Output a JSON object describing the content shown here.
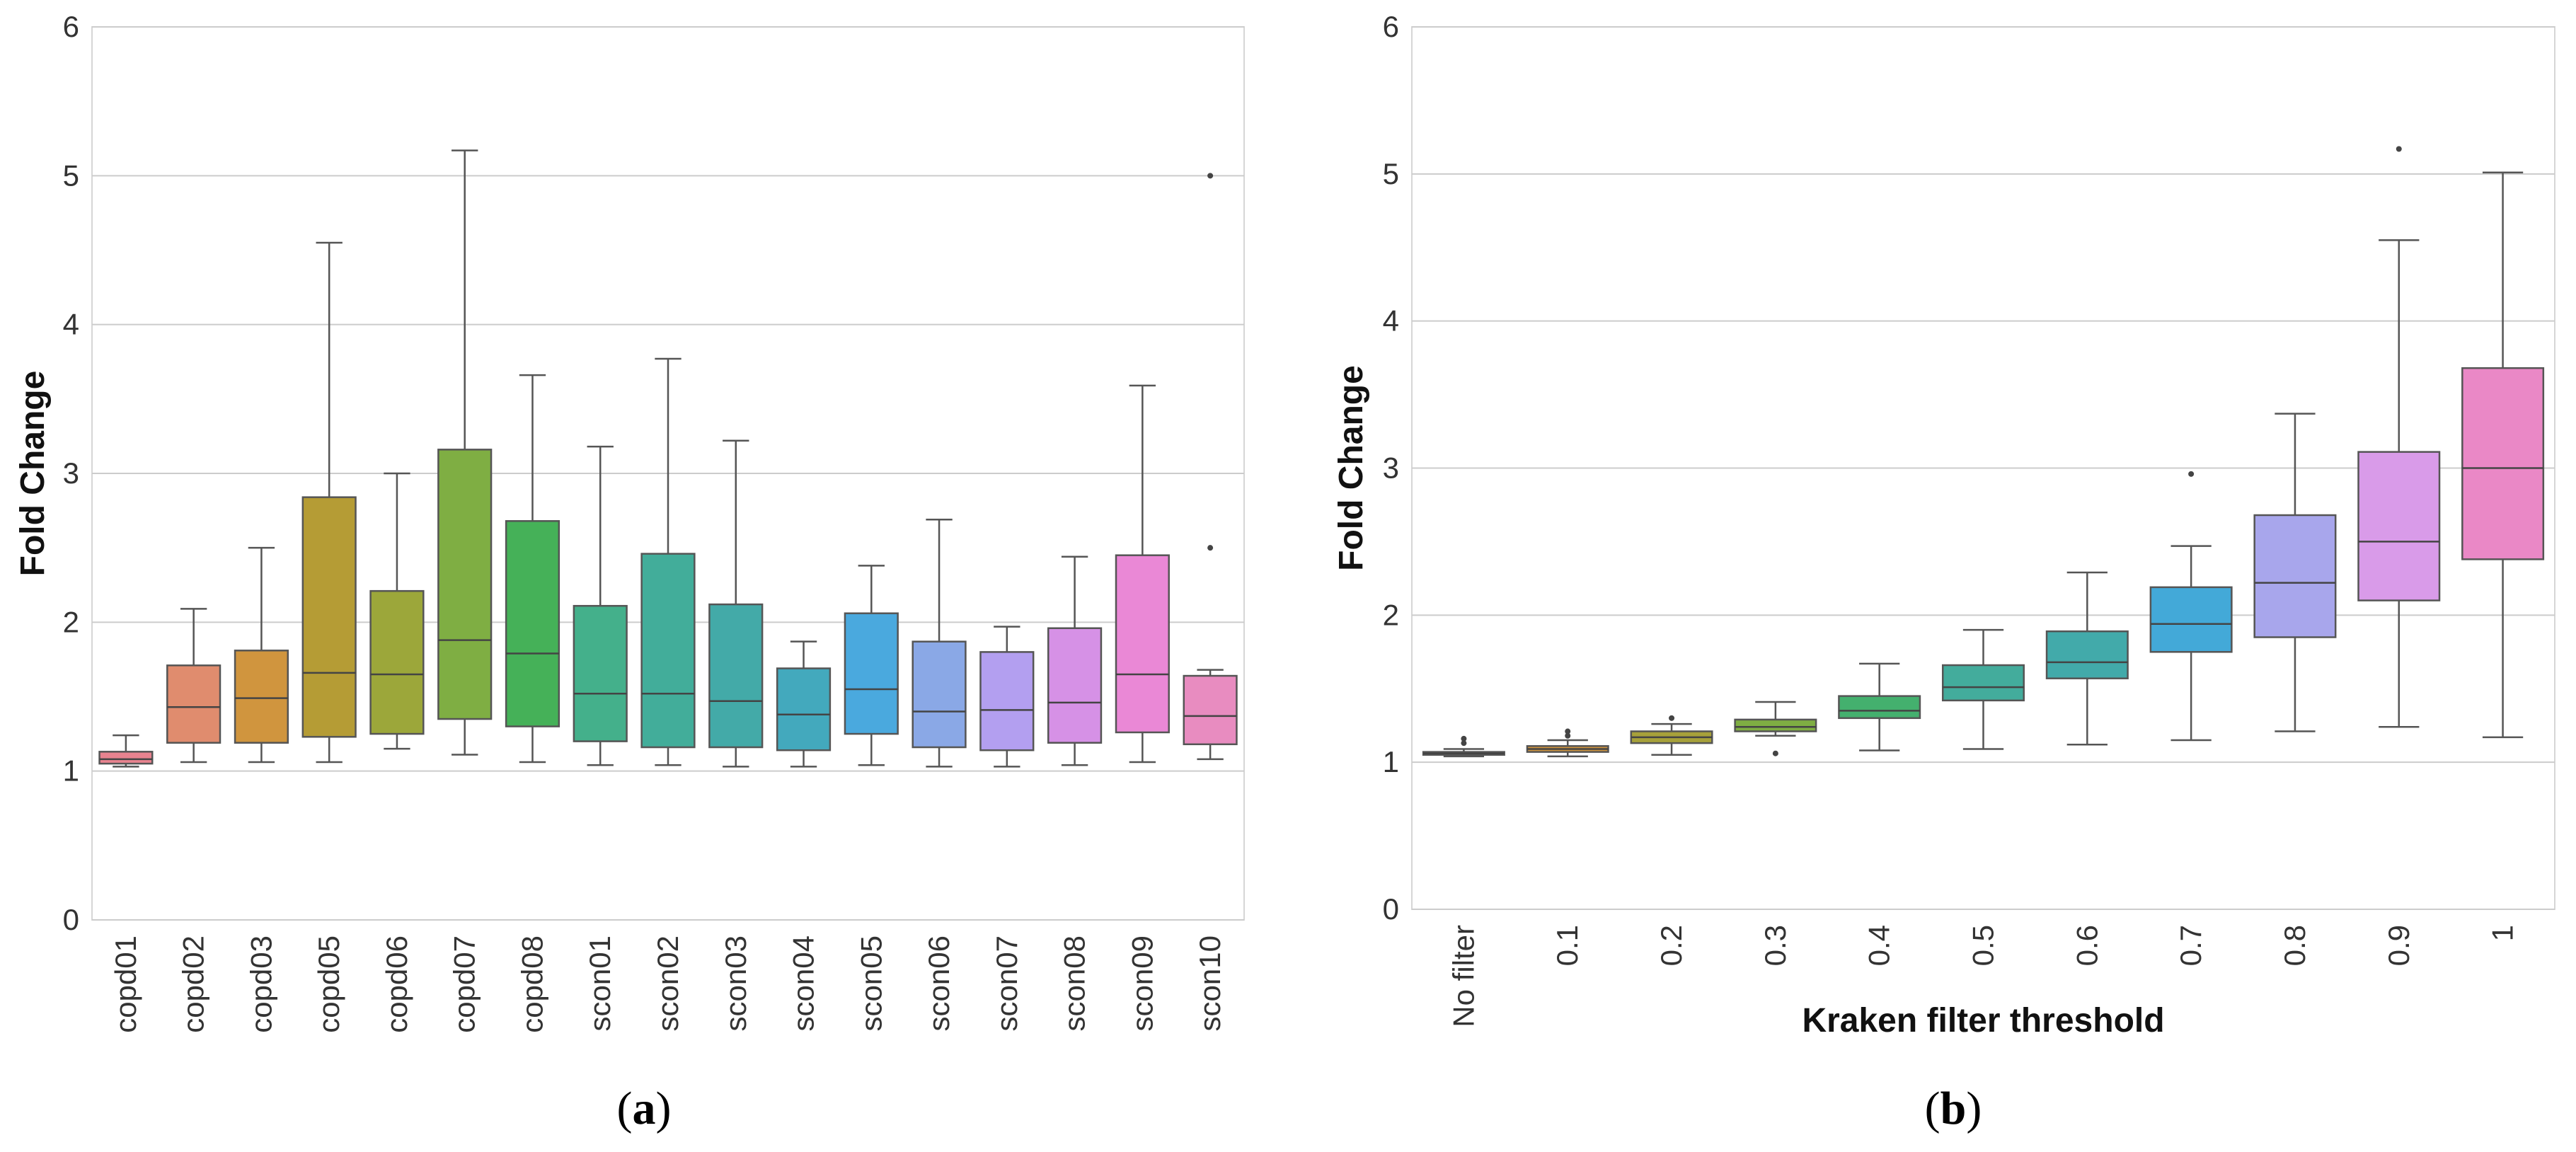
{
  "chart_data": [
    {
      "type": "box",
      "panel_label": "a",
      "caption_open": "(",
      "caption_close": ")",
      "title": "",
      "xlabel": "",
      "ylabel": "Fold Change",
      "ylim": [
        0,
        6
      ],
      "yticks": [
        "0",
        "1",
        "2",
        "3",
        "4",
        "5",
        "6"
      ],
      "grid": true,
      "categories": [
        "copd01",
        "copd02",
        "copd03",
        "copd05",
        "copd06",
        "copd07",
        "copd08",
        "scon01",
        "scon02",
        "scon03",
        "scon04",
        "scon05",
        "scon06",
        "scon07",
        "scon08",
        "scon09",
        "scon10"
      ],
      "colors": [
        "#e8838f",
        "#e08c6e",
        "#d0953e",
        "#b59c35",
        "#9ca73a",
        "#7fae43",
        "#45b158",
        "#44b08b",
        "#42ad9a",
        "#43aaa8",
        "#43a9bd",
        "#4aa9de",
        "#8aa8e6",
        "#b39ff0",
        "#d691e6",
        "#ea88d6",
        "#e88cc0"
      ],
      "series": [
        {
          "name": "copd01",
          "whislo": 1.03,
          "q1": 1.05,
          "median": 1.08,
          "q3": 1.13,
          "whishi": 1.24,
          "fliers": []
        },
        {
          "name": "copd02",
          "whislo": 1.06,
          "q1": 1.19,
          "median": 1.43,
          "q3": 1.71,
          "whishi": 2.09,
          "fliers": []
        },
        {
          "name": "copd03",
          "whislo": 1.06,
          "q1": 1.19,
          "median": 1.49,
          "q3": 1.81,
          "whishi": 2.5,
          "fliers": []
        },
        {
          "name": "copd05",
          "whislo": 1.06,
          "q1": 1.23,
          "median": 1.66,
          "q3": 2.84,
          "whishi": 4.55,
          "fliers": []
        },
        {
          "name": "copd06",
          "whislo": 1.15,
          "q1": 1.25,
          "median": 1.65,
          "q3": 2.21,
          "whishi": 3.0,
          "fliers": []
        },
        {
          "name": "copd07",
          "whislo": 1.11,
          "q1": 1.35,
          "median": 1.88,
          "q3": 3.16,
          "whishi": 5.17,
          "fliers": []
        },
        {
          "name": "copd08",
          "whislo": 1.06,
          "q1": 1.3,
          "median": 1.79,
          "q3": 2.68,
          "whishi": 3.66,
          "fliers": []
        },
        {
          "name": "scon01",
          "whislo": 1.04,
          "q1": 1.2,
          "median": 1.52,
          "q3": 2.11,
          "whishi": 3.18,
          "fliers": []
        },
        {
          "name": "scon02",
          "whislo": 1.04,
          "q1": 1.16,
          "median": 1.52,
          "q3": 2.46,
          "whishi": 3.77,
          "fliers": []
        },
        {
          "name": "scon03",
          "whislo": 1.03,
          "q1": 1.16,
          "median": 1.47,
          "q3": 2.12,
          "whishi": 3.22,
          "fliers": []
        },
        {
          "name": "scon04",
          "whislo": 1.03,
          "q1": 1.14,
          "median": 1.38,
          "q3": 1.69,
          "whishi": 1.87,
          "fliers": []
        },
        {
          "name": "scon05",
          "whislo": 1.04,
          "q1": 1.25,
          "median": 1.55,
          "q3": 2.06,
          "whishi": 2.38,
          "fliers": []
        },
        {
          "name": "scon06",
          "whislo": 1.03,
          "q1": 1.16,
          "median": 1.4,
          "q3": 1.87,
          "whishi": 2.69,
          "fliers": []
        },
        {
          "name": "scon07",
          "whislo": 1.03,
          "q1": 1.14,
          "median": 1.41,
          "q3": 1.8,
          "whishi": 1.97,
          "fliers": []
        },
        {
          "name": "scon08",
          "whislo": 1.04,
          "q1": 1.19,
          "median": 1.46,
          "q3": 1.96,
          "whishi": 2.44,
          "fliers": []
        },
        {
          "name": "scon09",
          "whislo": 1.06,
          "q1": 1.26,
          "median": 1.65,
          "q3": 2.45,
          "whishi": 3.59,
          "fliers": []
        },
        {
          "name": "scon10",
          "whislo": 1.08,
          "q1": 1.18,
          "median": 1.37,
          "q3": 1.64,
          "whishi": 1.68,
          "fliers": [
            2.5,
            5.0
          ]
        }
      ]
    },
    {
      "type": "box",
      "panel_label": "b",
      "caption_open": "(",
      "caption_close": ")",
      "title": "",
      "xlabel": "Kraken filter threshold",
      "ylabel": "Fold Change",
      "ylim": [
        0,
        6
      ],
      "yticks": [
        "0",
        "1",
        "2",
        "3",
        "4",
        "5",
        "6"
      ],
      "grid": true,
      "categories": [
        "No filter",
        "0.1",
        "0.2",
        "0.3",
        "0.4",
        "0.5",
        "0.6",
        "0.7",
        "0.8",
        "0.9",
        "1"
      ],
      "colors": [
        "#e8838f",
        "#d0953e",
        "#a7a13a",
        "#7fae43",
        "#44b06e",
        "#43ac9c",
        "#42aaaa",
        "#43a9d8",
        "#a8a6ec",
        "#d99be9",
        "#ea88c6"
      ],
      "series": [
        {
          "name": "No filter",
          "whislo": 1.04,
          "q1": 1.05,
          "median": 1.06,
          "q3": 1.07,
          "whishi": 1.09,
          "fliers": [
            1.13,
            1.16
          ]
        },
        {
          "name": "0.1",
          "whislo": 1.04,
          "q1": 1.07,
          "median": 1.09,
          "q3": 1.11,
          "whishi": 1.15,
          "fliers": [
            1.18,
            1.21
          ]
        },
        {
          "name": "0.2",
          "whislo": 1.05,
          "q1": 1.13,
          "median": 1.17,
          "q3": 1.21,
          "whishi": 1.26,
          "fliers": [
            1.3
          ]
        },
        {
          "name": "0.3",
          "whislo": 1.18,
          "q1": 1.21,
          "median": 1.24,
          "q3": 1.29,
          "whishi": 1.41,
          "fliers": [
            1.06
          ]
        },
        {
          "name": "0.4",
          "whislo": 1.08,
          "q1": 1.3,
          "median": 1.35,
          "q3": 1.45,
          "whishi": 1.67,
          "fliers": []
        },
        {
          "name": "0.5",
          "whislo": 1.09,
          "q1": 1.42,
          "median": 1.51,
          "q3": 1.66,
          "whishi": 1.9,
          "fliers": []
        },
        {
          "name": "0.6",
          "whislo": 1.12,
          "q1": 1.57,
          "median": 1.68,
          "q3": 1.89,
          "whishi": 2.29,
          "fliers": []
        },
        {
          "name": "0.7",
          "whislo": 1.15,
          "q1": 1.75,
          "median": 1.94,
          "q3": 2.19,
          "whishi": 2.47,
          "fliers": [
            2.96
          ]
        },
        {
          "name": "0.8",
          "whislo": 1.21,
          "q1": 1.85,
          "median": 2.22,
          "q3": 2.68,
          "whishi": 3.37,
          "fliers": []
        },
        {
          "name": "0.9",
          "whislo": 1.24,
          "q1": 2.1,
          "median": 2.5,
          "q3": 3.11,
          "whishi": 4.55,
          "fliers": [
            5.17
          ]
        },
        {
          "name": "1",
          "whislo": 1.17,
          "q1": 2.38,
          "median": 3.0,
          "q3": 3.68,
          "whishi": 5.01,
          "fliers": []
        }
      ]
    }
  ]
}
